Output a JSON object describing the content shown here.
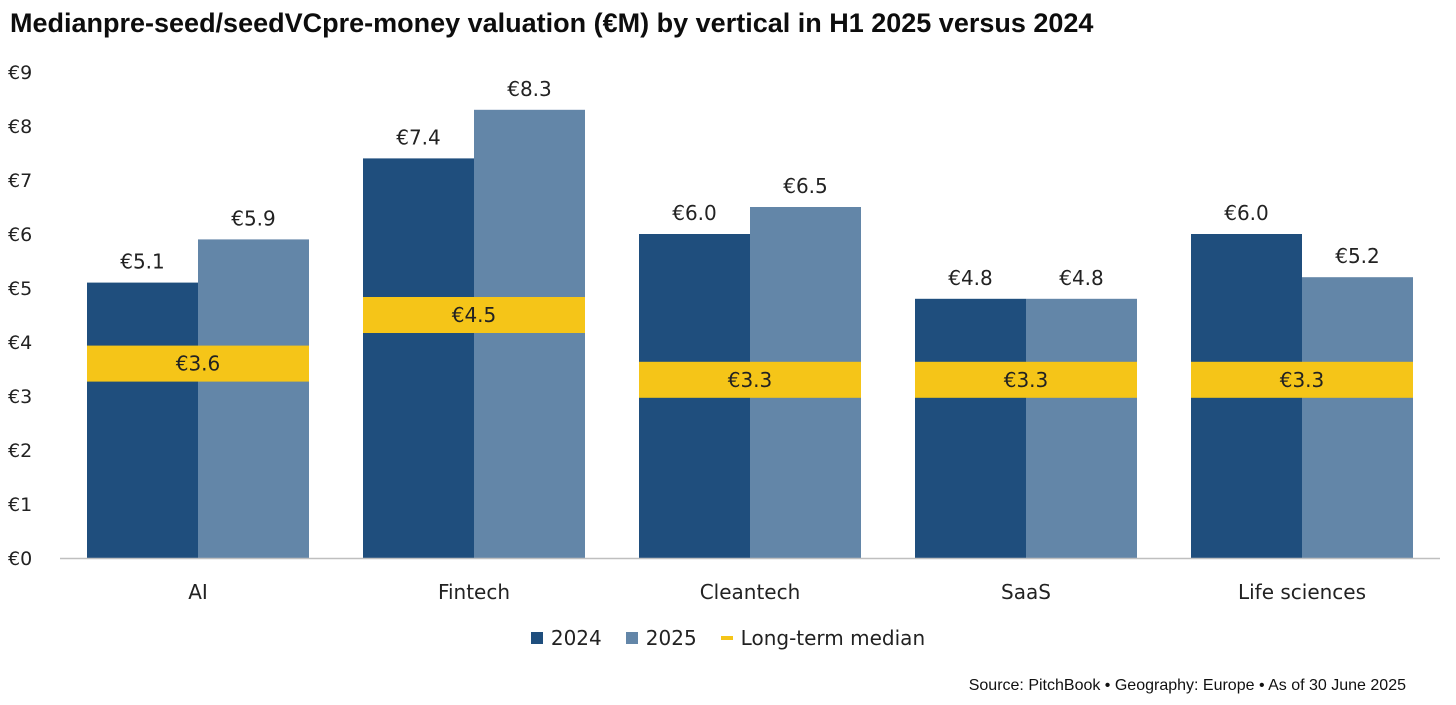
{
  "chart_data": {
    "type": "bar",
    "title": "Medianpre-seed/seedVCpre-money valuation (€M) by vertical in H1 2025 versus 2024",
    "categories": [
      "AI",
      "Fintech",
      "Cleantech",
      "SaaS",
      "Life sciences"
    ],
    "series": [
      {
        "name": "2024",
        "values": [
          5.1,
          7.4,
          6.0,
          4.8,
          6.0
        ],
        "labels": [
          "€5.1",
          "€7.4",
          "€6.0",
          "€4.8",
          "€6.0"
        ],
        "color": "#1f4e7d"
      },
      {
        "name": "2025",
        "values": [
          5.9,
          8.3,
          6.5,
          4.8,
          5.2
        ],
        "labels": [
          "€5.9",
          "€8.3",
          "€6.5",
          "€4.8",
          "€5.2"
        ],
        "color": "#6386a8"
      }
    ],
    "median": {
      "name": "Long-term median",
      "values": [
        3.6,
        4.5,
        3.3,
        3.3,
        3.3
      ],
      "labels": [
        "€3.6",
        "€4.5",
        "€3.3",
        "€3.3",
        "€3.3"
      ],
      "color": "#f5c518"
    },
    "y_ticks": [
      "€0",
      "€1",
      "€2",
      "€3",
      "€4",
      "€5",
      "€6",
      "€7",
      "€8",
      "€9"
    ],
    "ylim": [
      0,
      9
    ],
    "xlabel": "",
    "ylabel": "",
    "grid": false,
    "legend_position": "bottom-center"
  },
  "source": "Source: PitchBook • Geography: Europe • As of 30 June 2025"
}
